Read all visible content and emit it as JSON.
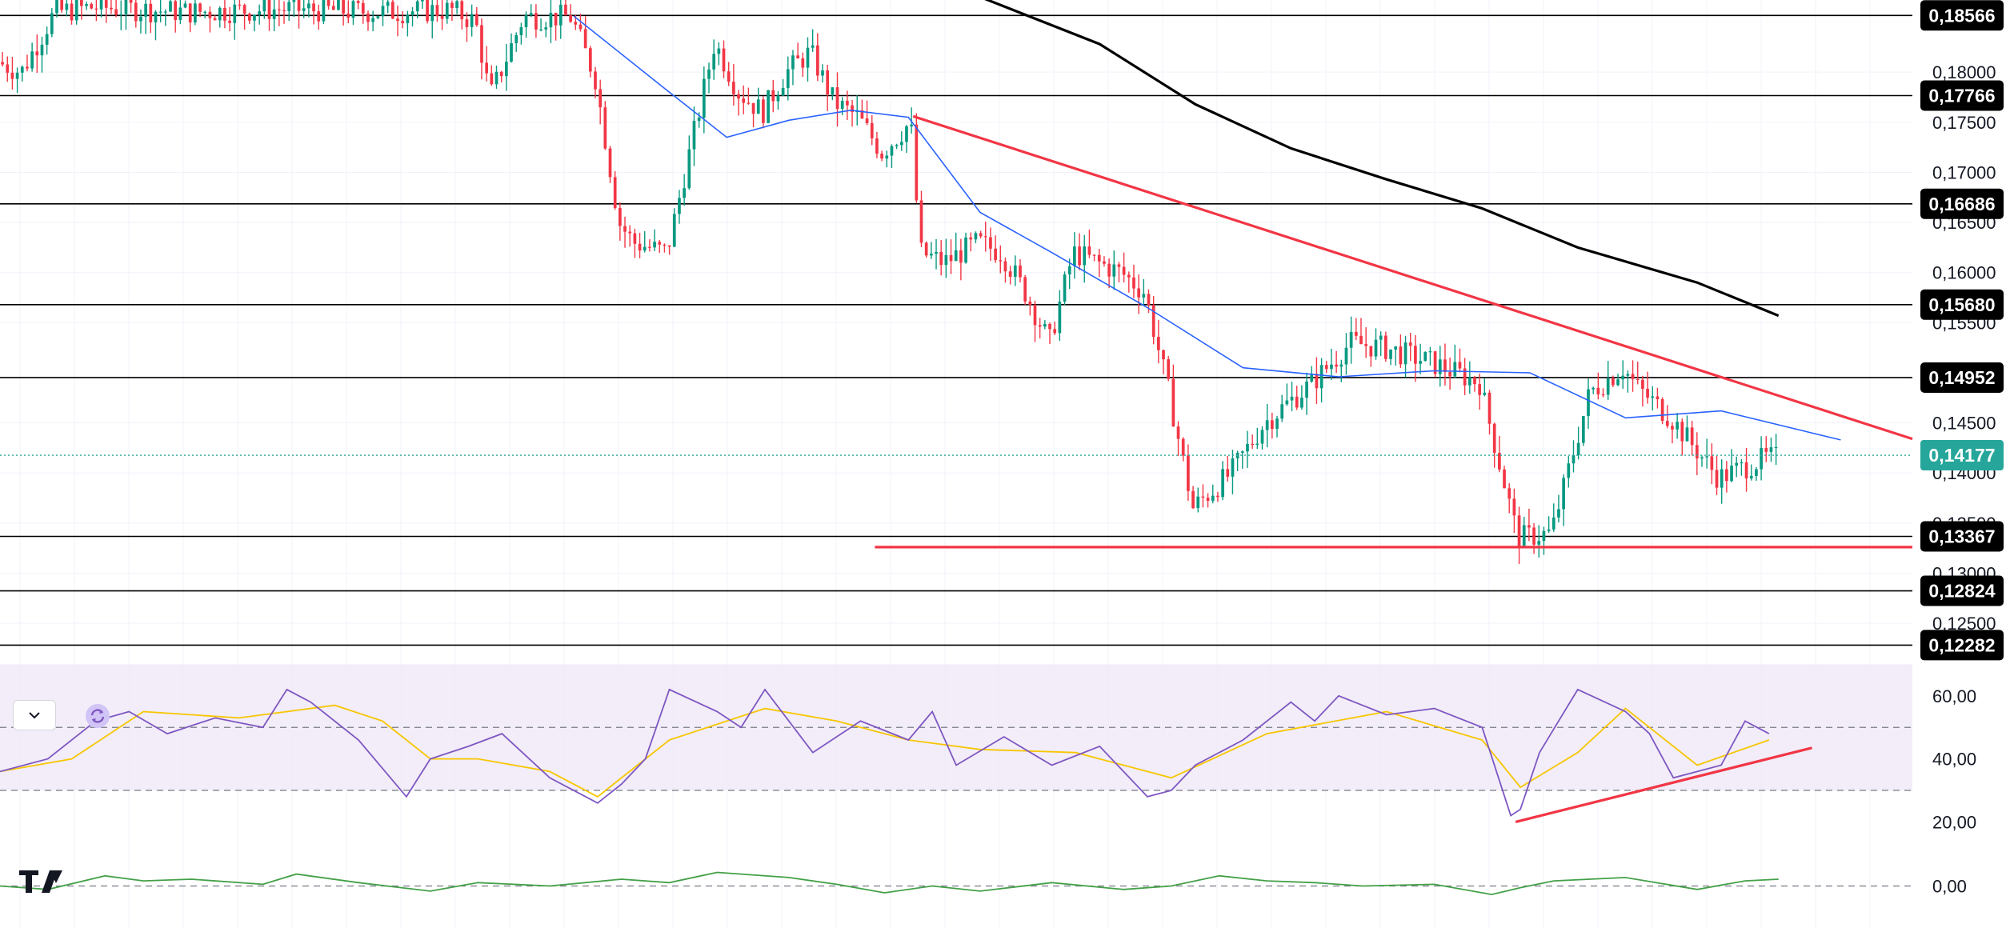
{
  "chart_data": [
    {
      "type": "candlestick",
      "title": "",
      "currency_format": "comma-decimal",
      "price_axis_ticks": [
        "0,18000",
        "0,17500",
        "0,17000",
        "0,16500",
        "0,16000",
        "0,15500",
        "0,14500",
        "0,14000",
        "0,13500",
        "0,13000",
        "0,12500"
      ],
      "price_axis_tick_values": [
        0.18,
        0.175,
        0.17,
        0.165,
        0.16,
        0.155,
        0.145,
        0.14,
        0.135,
        0.13,
        0.125
      ],
      "ylim": [
        0.1195,
        0.1872
      ],
      "x_range": [
        0,
        400
      ],
      "horizontal_levels": [
        {
          "label": "0,18566",
          "value": 0.18566
        },
        {
          "label": "0,17766",
          "value": 0.17766
        },
        {
          "label": "0,16686",
          "value": 0.16686
        },
        {
          "label": "0,15680",
          "value": 0.1568
        },
        {
          "label": "0,14952",
          "value": 0.14952
        },
        {
          "label": "0,13367",
          "value": 0.13367
        },
        {
          "label": "0,12824",
          "value": 0.12824
        },
        {
          "label": "0,12282",
          "value": 0.12282
        }
      ],
      "current_price": {
        "label": "0,14177",
        "value": 0.14177,
        "color": "#26a69a"
      },
      "descending_trendline": {
        "x": [
          191,
          400
        ],
        "y": [
          0.1756,
          0.1434
        ],
        "color": "#f23645"
      },
      "support_line": {
        "x": [
          183,
          400
        ],
        "y": [
          0.1326,
          0.1326
        ],
        "color": "#f23645"
      },
      "moving_average_blue": {
        "color": "#2962ff",
        "x": [
          120,
          140,
          152,
          165,
          178,
          190,
          205,
          220,
          240,
          260,
          280,
          300,
          320,
          340,
          360,
          385
        ],
        "y": [
          0.1856,
          0.178,
          0.1735,
          0.1752,
          0.1762,
          0.1755,
          0.166,
          0.162,
          0.1565,
          0.1505,
          0.1496,
          0.1502,
          0.15,
          0.1455,
          0.1462,
          0.1433
        ]
      },
      "moving_average_black": {
        "color": "#000000",
        "x": [
          205,
          230,
          250,
          270,
          290,
          310,
          330,
          355,
          372
        ],
        "y": [
          0.1875,
          0.1828,
          0.1768,
          0.1724,
          0.1693,
          0.1664,
          0.1625,
          0.159,
          0.1557
        ]
      },
      "candle_colors": {
        "up": "#089981",
        "down": "#f23645"
      },
      "price_path": {
        "x": [
          0,
          5,
          12,
          20,
          40,
          60,
          80,
          95,
          100,
          103,
          110,
          115,
          120,
          125,
          130,
          133,
          140,
          150,
          155,
          160,
          165,
          170,
          175,
          180,
          185,
          191,
          193,
          198,
          205,
          210,
          215,
          220,
          225,
          235,
          240,
          245,
          250,
          258,
          265,
          275,
          283,
          290,
          300,
          310,
          318,
          325,
          333,
          340,
          343,
          350,
          360,
          370
        ],
        "y": [
          0.181,
          0.18,
          0.186,
          0.1865,
          0.186,
          0.1863,
          0.186,
          0.1862,
          0.185,
          0.1775,
          0.1855,
          0.1855,
          0.1855,
          0.1795,
          0.165,
          0.163,
          0.162,
          0.183,
          0.178,
          0.176,
          0.18,
          0.182,
          0.177,
          0.1755,
          0.172,
          0.175,
          0.162,
          0.161,
          0.163,
          0.162,
          0.158,
          0.153,
          0.162,
          0.16,
          0.158,
          0.148,
          0.1365,
          0.14,
          0.145,
          0.149,
          0.153,
          0.1525,
          0.151,
          0.149,
          0.1335,
          0.134,
          0.148,
          0.1505,
          0.1485,
          0.1455,
          0.1395,
          0.1415
        ]
      }
    },
    {
      "type": "line",
      "title": "",
      "axis_ticks": [
        "60,00",
        "40,00",
        "20,00"
      ],
      "axis_tick_values": [
        60,
        40,
        20
      ],
      "ylim": [
        13,
        63
      ],
      "band": {
        "from": 30,
        "to": 70,
        "dashed_levels": [
          30,
          50
        ]
      },
      "rsi": {
        "color": "#7e57c2",
        "x": [
          0,
          10,
          20,
          27,
          35,
          45,
          55,
          60,
          65,
          75,
          85,
          90,
          98,
          105,
          115,
          125,
          130,
          135,
          140,
          150,
          155,
          160,
          170,
          180,
          190,
          195,
          200,
          210,
          220,
          230,
          240,
          245,
          250,
          260,
          270,
          275,
          280,
          290,
          300,
          310,
          316,
          318,
          322,
          330,
          340,
          345,
          350,
          360,
          365,
          370
        ],
        "y": [
          36,
          40,
          52,
          55,
          48,
          53,
          50,
          62,
          58,
          46,
          28,
          40,
          44,
          48,
          34,
          26,
          32,
          40,
          62,
          55,
          50,
          62,
          42,
          52,
          46,
          55,
          38,
          47,
          38,
          44,
          28,
          30,
          38,
          46,
          58,
          52,
          60,
          54,
          56,
          50,
          22,
          24,
          42,
          62,
          55,
          48,
          34,
          38,
          52,
          48
        ]
      },
      "rsi_ma": {
        "color": "#f7c600",
        "x": [
          0,
          15,
          30,
          50,
          70,
          80,
          90,
          100,
          115,
          125,
          140,
          160,
          175,
          190,
          205,
          225,
          245,
          265,
          290,
          310,
          318,
          330,
          340,
          355,
          370
        ],
        "y": [
          36,
          40,
          55,
          53,
          57,
          52,
          40,
          40,
          36,
          28,
          46,
          56,
          52,
          46,
          43,
          42,
          34,
          48,
          55,
          46,
          31,
          42,
          56,
          38,
          46
        ]
      },
      "trendline": {
        "x": [
          317,
          379
        ],
        "y": [
          20,
          43.5
        ],
        "color": "#f23645"
      }
    },
    {
      "type": "line",
      "title": "",
      "axis_ticks": [
        "0,00"
      ],
      "axis_tick_values": [
        0
      ],
      "ylim": [
        -1,
        1
      ],
      "zero_line_dashed": true,
      "oscillator": {
        "color": "#43a047",
        "x": [
          0,
          10,
          22,
          30,
          40,
          55,
          62,
          75,
          90,
          100,
          115,
          130,
          140,
          150,
          165,
          175,
          185,
          195,
          205,
          220,
          235,
          245,
          255,
          265,
          275,
          285,
          300,
          312,
          318,
          325,
          340,
          355,
          365,
          372
        ],
        "y": [
          0,
          -0.1,
          0.3,
          0.15,
          0.2,
          0.05,
          0.35,
          0.1,
          -0.15,
          0.1,
          0.0,
          0.2,
          0.1,
          0.4,
          0.25,
          0.05,
          -0.2,
          0.0,
          -0.15,
          0.1,
          -0.1,
          0.0,
          0.3,
          0.15,
          0.1,
          0.0,
          0.05,
          -0.25,
          -0.05,
          0.15,
          0.25,
          -0.1,
          0.15,
          0.2
        ]
      }
    }
  ],
  "branding": {
    "logo_text": "TV"
  }
}
